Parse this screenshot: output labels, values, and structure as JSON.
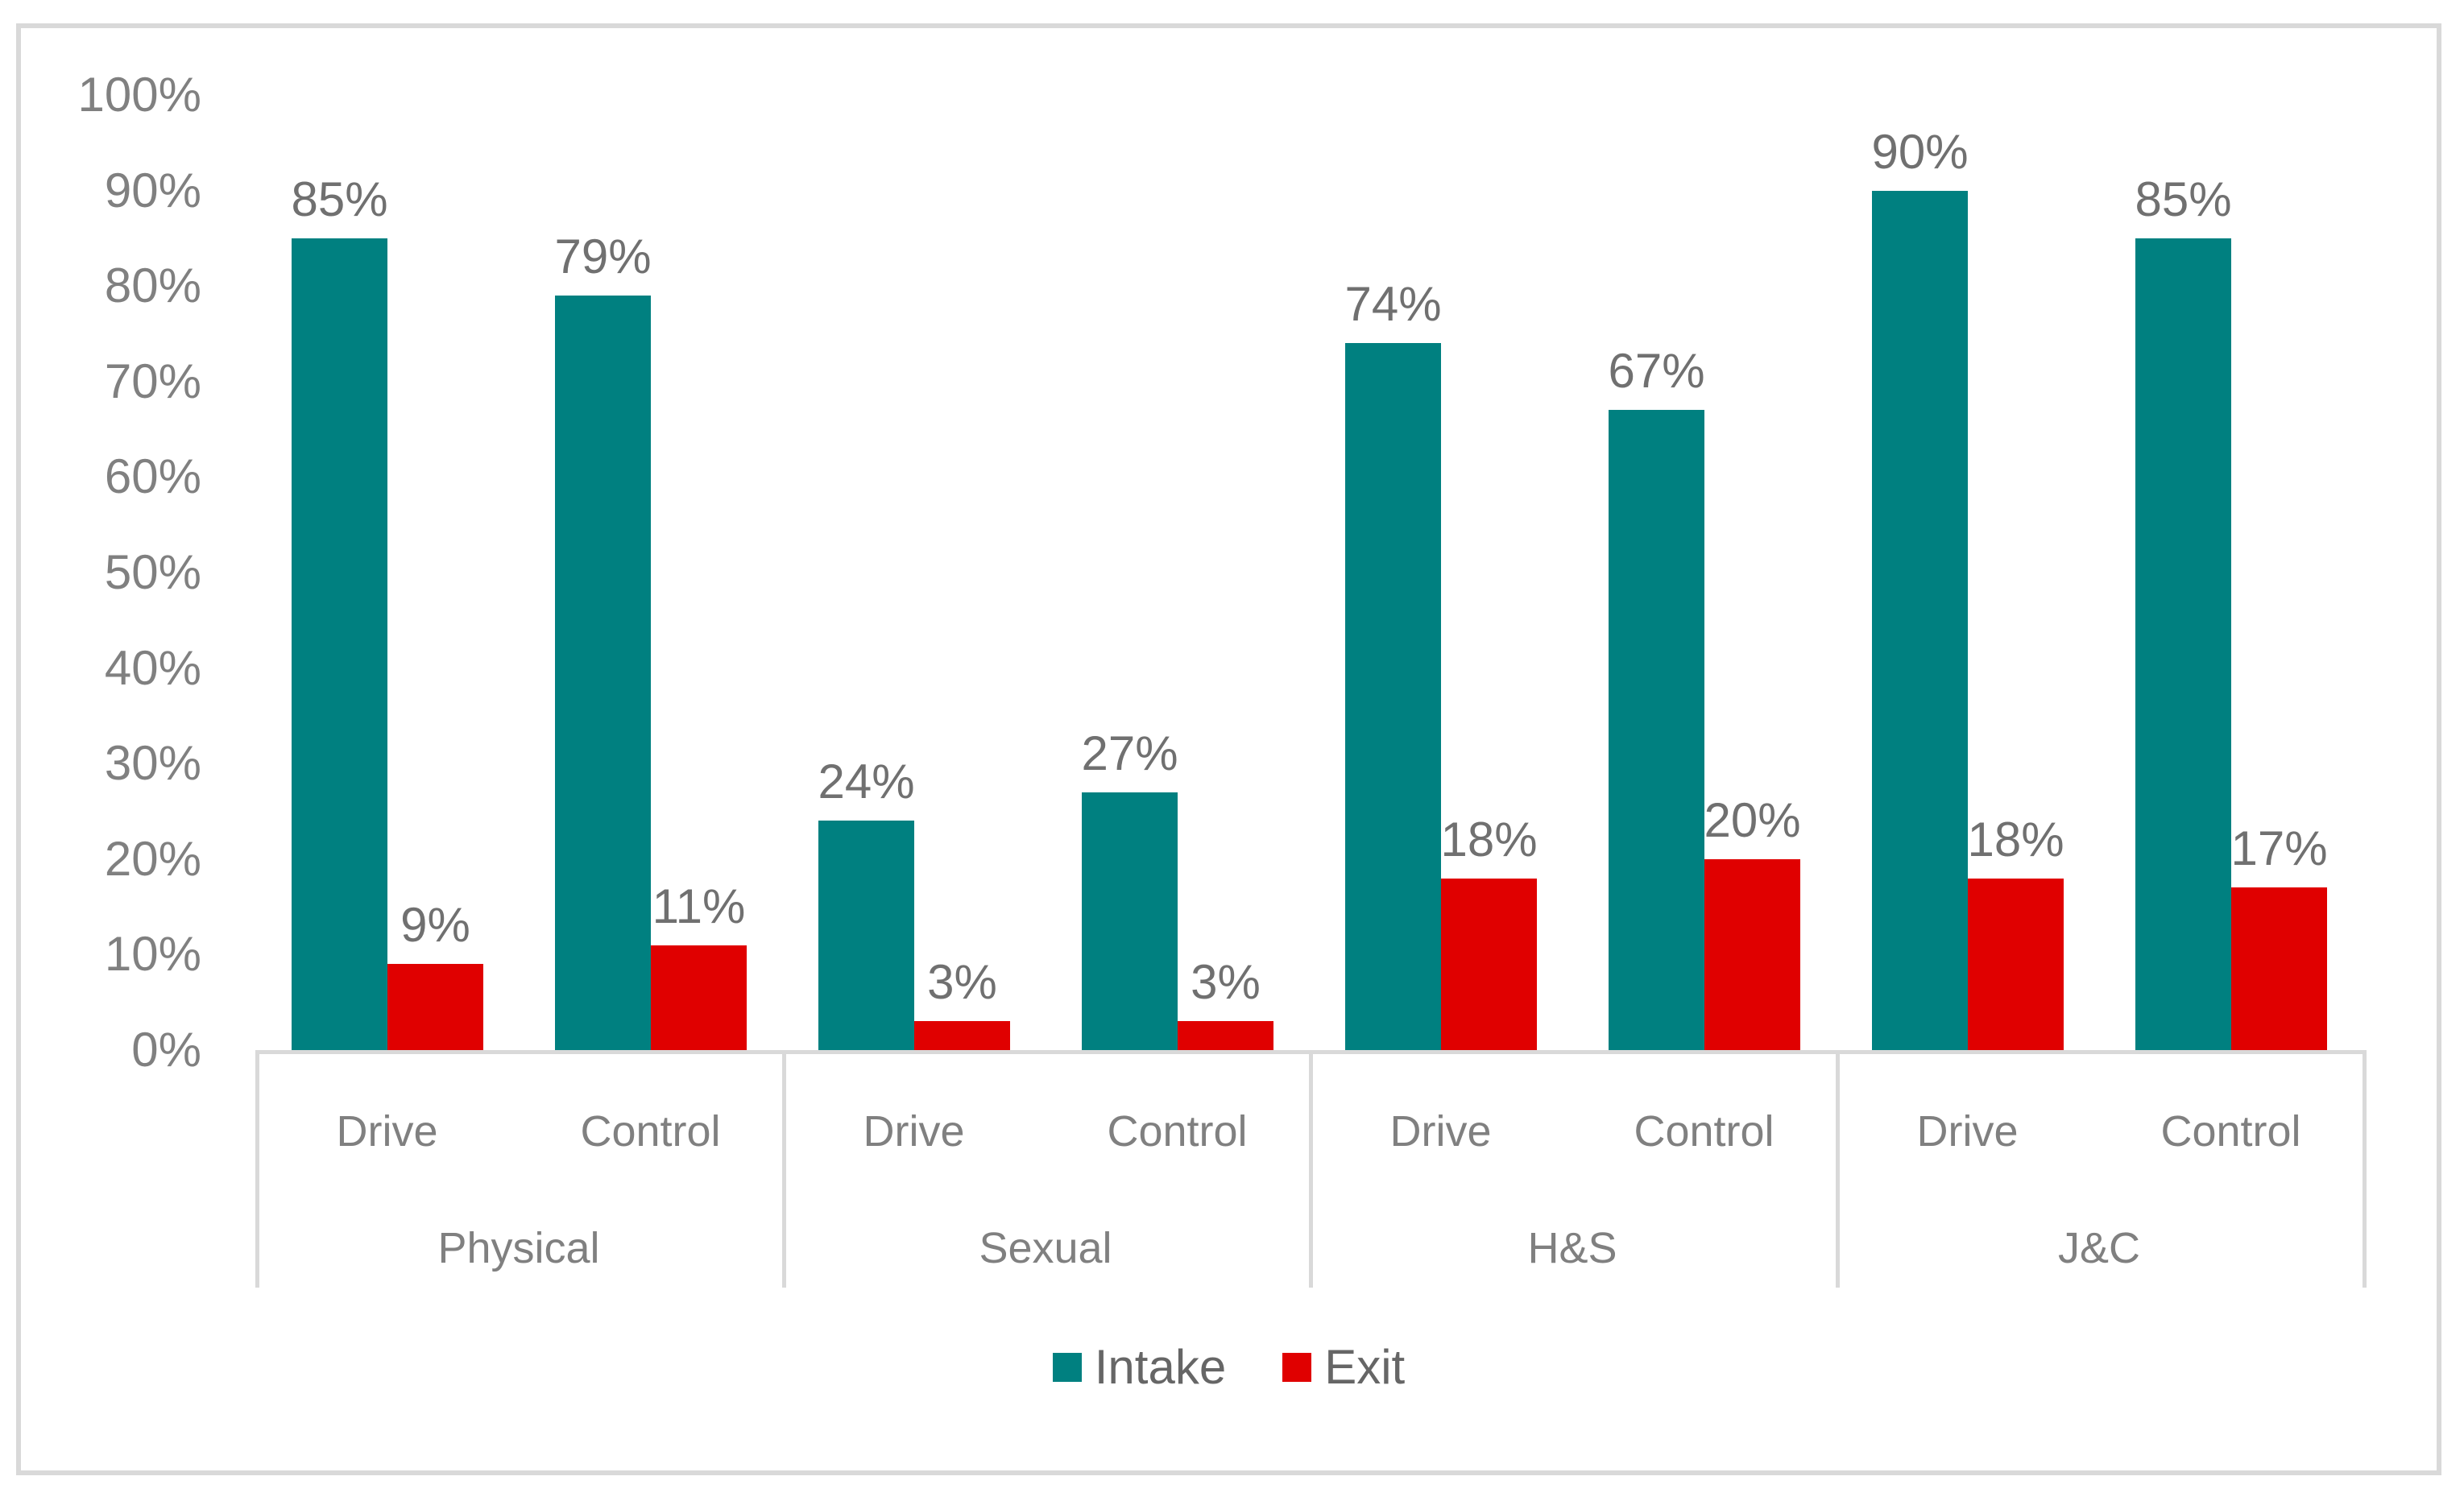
{
  "chart_data": {
    "type": "bar",
    "title": "",
    "xlabel": "",
    "ylabel": "",
    "ylim": [
      0,
      100
    ],
    "grid": false,
    "legend_position": "bottom",
    "y_ticks": [
      "0%",
      "10%",
      "20%",
      "30%",
      "40%",
      "50%",
      "60%",
      "70%",
      "80%",
      "90%",
      "100%"
    ],
    "groups": [
      {
        "label": "Physical",
        "items": [
          {
            "category": "Drive",
            "intake": 85,
            "exit": 9
          },
          {
            "category": "Control",
            "intake": 79,
            "exit": 11
          }
        ]
      },
      {
        "label": "Sexual",
        "items": [
          {
            "category": "Drive",
            "intake": 24,
            "exit": 3
          },
          {
            "category": "Control",
            "intake": 27,
            "exit": 3
          }
        ]
      },
      {
        "label": "H&S",
        "items": [
          {
            "category": "Drive",
            "intake": 74,
            "exit": 18
          },
          {
            "category": "Control",
            "intake": 67,
            "exit": 20
          }
        ]
      },
      {
        "label": "J&C",
        "items": [
          {
            "category": "Drive",
            "intake": 90,
            "exit": 18
          },
          {
            "category": "Control",
            "intake": 85,
            "exit": 17
          }
        ]
      }
    ],
    "series": [
      {
        "name": "Intake",
        "color": "#008080",
        "values": [
          85,
          79,
          24,
          27,
          74,
          67,
          90,
          85
        ]
      },
      {
        "name": "Exit",
        "color": "#e00000",
        "values": [
          9,
          11,
          3,
          3,
          18,
          20,
          18,
          17
        ]
      }
    ],
    "value_label_suffix": "%"
  },
  "legend": {
    "items": [
      {
        "label": "Intake",
        "color": "#008080"
      },
      {
        "label": "Exit",
        "color": "#e00000"
      }
    ]
  },
  "colors": {
    "intake": "#008080",
    "exit": "#e00000",
    "frame_border": "#d9d9d9",
    "tick_text": "#808080",
    "category_text": "#808080",
    "value_label_text": "#707070",
    "legend_text": "#666666"
  }
}
